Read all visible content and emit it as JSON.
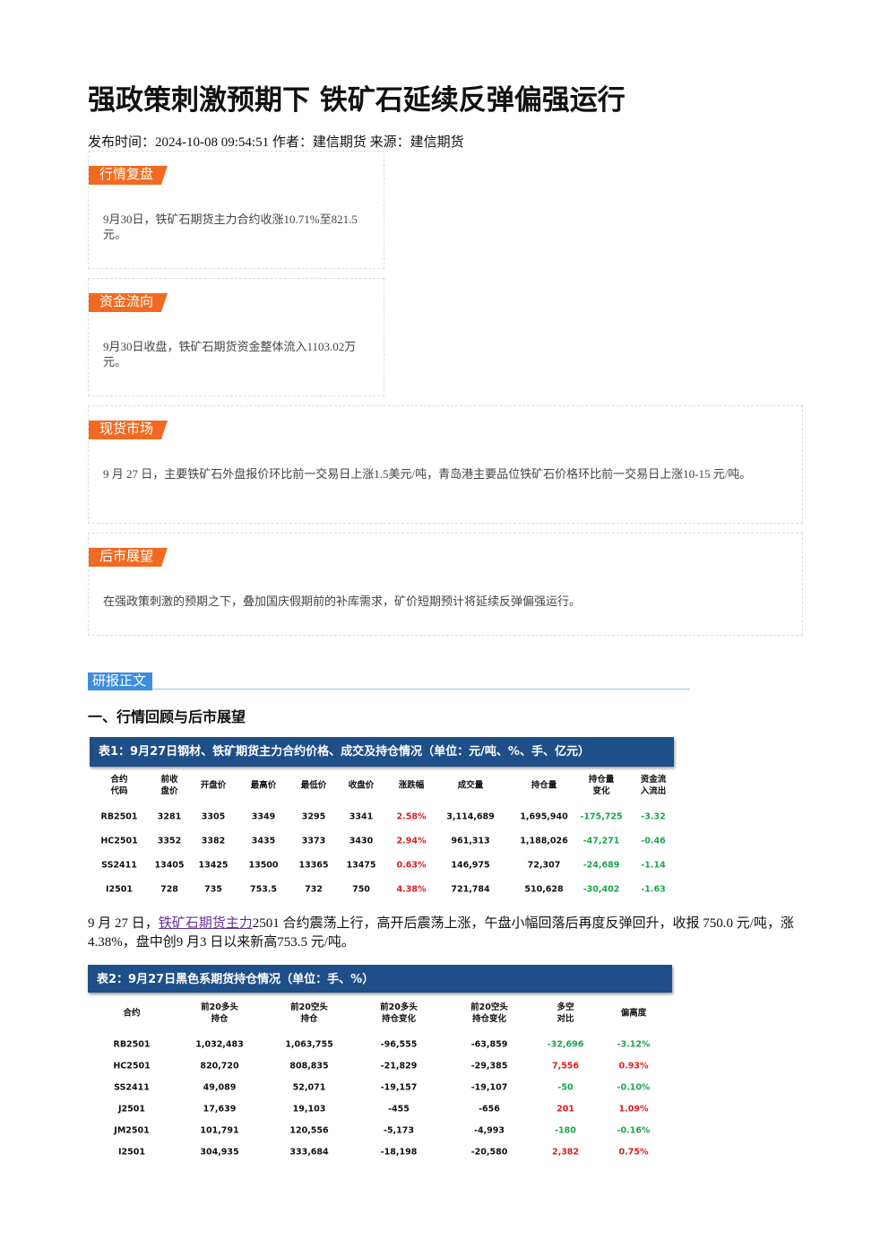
{
  "header": {
    "title": "强政策刺激预期下 铁矿石延续反弹偏强运行",
    "meta": "发布时间：2024-10-08 09:54:51 作者：建信期货 来源：建信期货"
  },
  "sections": [
    {
      "label": "行情复盘",
      "text": "9月30日，铁矿石期货主力合约收涨10.71%至821.5元。"
    },
    {
      "label": "资金流向",
      "text": "9月30日收盘，铁矿石期货资金整体流入1103.02万元。"
    },
    {
      "label": "现货市场",
      "text": "9 月 27 日，主要铁矿石外盘报价环比前一交易日上涨1.5美元/吨，青岛港主要品位铁矿石价格环比前一交易日上涨10-15 元/吨。"
    },
    {
      "label": "后市展望",
      "text": "在强政策刺激的预期之下，叠加国庆假期前的补库需求，矿价短期预计将延续反弹偏强运行。"
    }
  ],
  "body": {
    "label": "研报正文",
    "heading": "一、行情回顾与后市展望",
    "paragraph": {
      "before": "9 月 27 日，",
      "link": "铁矿石期货主力",
      "after": "2501 合约震荡上行，高开后震荡上涨，午盘小幅回落后再度反弹回升，收报 750.0 元/吨，涨 4.38%，盘中创9 月3 日以来新高753.5 元/吨。"
    }
  },
  "table1": {
    "title": "表1：9月27日钢材、铁矿期货主力合约价格、成交及持仓情况（单位：元/吨、%、手、亿元）",
    "headers": [
      "合约\n代码",
      "前收\n盘价",
      "开盘价",
      "最高价",
      "最低价",
      "收盘价",
      "涨跌幅",
      "成交量",
      "持仓量",
      "持仓量\n变化",
      "资金流\n入流出"
    ],
    "rows": [
      [
        "RB2501",
        "3281",
        "3305",
        "3349",
        "3295",
        "3341",
        "2.58%",
        "3,114,689",
        "1,695,940",
        "-175,725",
        "-3.32"
      ],
      [
        "HC2501",
        "3352",
        "3382",
        "3435",
        "3373",
        "3430",
        "2.94%",
        "961,313",
        "1,188,026",
        "-47,271",
        "-0.46"
      ],
      [
        "SS2411",
        "13405",
        "13425",
        "13500",
        "13365",
        "13475",
        "0.63%",
        "146,975",
        "72,307",
        "-24,689",
        "-1.14"
      ],
      [
        "I2501",
        "728",
        "735",
        "753.5",
        "732",
        "750",
        "4.38%",
        "721,784",
        "510,628",
        "-30,402",
        "-1.63"
      ]
    ]
  },
  "table2": {
    "title": "表2：9月27日黑色系期货持仓情况（单位：手、%）",
    "headers": [
      "合约",
      "前20多头\n持仓",
      "前20空头\n持仓",
      "前20多头\n持仓变化",
      "前20空头\n持仓变化",
      "多空\n对比",
      "偏离度"
    ],
    "rows": [
      [
        "RB2501",
        "1,032,483",
        "1,063,755",
        "-96,555",
        "-63,859",
        "-32,696",
        "-3.12%"
      ],
      [
        "HC2501",
        "820,720",
        "808,835",
        "-21,829",
        "-29,385",
        "7,556",
        "0.93%"
      ],
      [
        "SS2411",
        "49,089",
        "52,071",
        "-19,157",
        "-19,107",
        "-50",
        "-0.10%"
      ],
      [
        "J2501",
        "17,639",
        "19,103",
        "-455",
        "-656",
        "201",
        "1.09%"
      ],
      [
        "JM2501",
        "101,791",
        "120,556",
        "-5,173",
        "-4,993",
        "-180",
        "-0.16%"
      ],
      [
        "I2501",
        "304,935",
        "333,684",
        "-18,198",
        "-20,580",
        "2,382",
        "0.75%"
      ]
    ]
  }
}
